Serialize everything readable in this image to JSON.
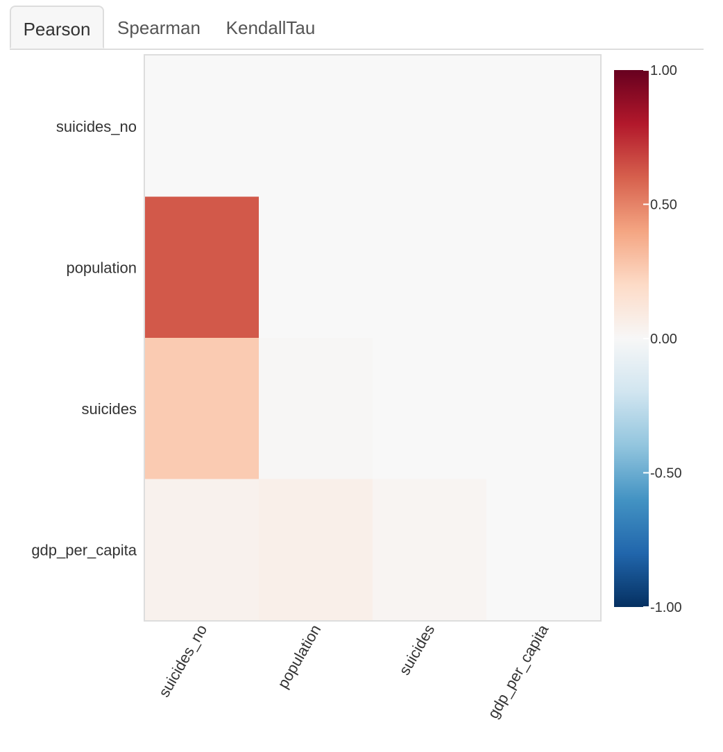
{
  "tabs": [
    {
      "label": "Pearson",
      "active": true
    },
    {
      "label": "Spearman",
      "active": false
    },
    {
      "label": "KendallTau",
      "active": false
    }
  ],
  "chart_data": {
    "type": "heatmap",
    "variables": [
      "suicides_no",
      "population",
      "suicides",
      "gdp_per_capita"
    ],
    "matrix": [
      [
        null,
        null,
        null,
        null
      ],
      [
        0.62,
        null,
        null,
        null
      ],
      [
        0.26,
        0.01,
        null,
        null
      ],
      [
        0.04,
        0.06,
        0.02,
        null
      ]
    ],
    "mask": "lower-triangle",
    "colorscale": {
      "min": -1.0,
      "max": 1.0,
      "stops": [
        "#053061",
        "#2166ac",
        "#4393c3",
        "#92c5de",
        "#d1e5f0",
        "#f7f7f7",
        "#fddbc7",
        "#f4a582",
        "#d6604d",
        "#b2182b",
        "#67001f"
      ],
      "ticks": [
        "1.00",
        "0.50",
        "0.00",
        "-0.50",
        "-1.00"
      ]
    },
    "masked_color": "#f8f8f8",
    "legend": "right"
  }
}
